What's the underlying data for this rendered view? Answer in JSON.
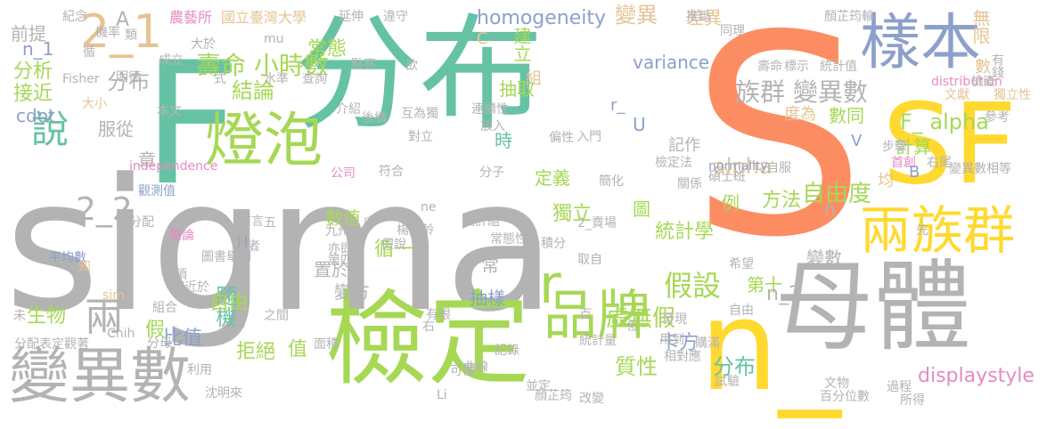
{
  "palette": {
    "background": "#ffffff",
    "green": "#a6d854",
    "teal": "#66c2a5",
    "orange": "#fc8d62",
    "blue": "#8da0cb",
    "pink": "#e78ac3",
    "yellow": "#ffd92f",
    "tan": "#e5c494",
    "gray": "#b3b3b3"
  },
  "words": [
    {
      "text": "sigma",
      "color": "gray"
    },
    {
      "text": "S",
      "color": "orange"
    },
    {
      "text": "分布",
      "color": "teal"
    },
    {
      "text": "F",
      "color": "teal"
    },
    {
      "text": "母體",
      "color": "gray"
    },
    {
      "text": "檢定",
      "color": "green"
    },
    {
      "text": "n_",
      "color": "yellow"
    },
    {
      "text": "樣本",
      "color": "blue"
    },
    {
      "text": "變異數",
      "color": "gray"
    },
    {
      "text": "SF",
      "color": "yellow"
    },
    {
      "text": "燈泡",
      "color": "green"
    },
    {
      "text": "兩族群",
      "color": "yellow"
    },
    {
      "text": "品牌",
      "color": "green"
    },
    {
      "text": "2_1",
      "color": "tan"
    },
    {
      "text": "說",
      "color": "teal"
    },
    {
      "text": "兩",
      "color": "gray"
    },
    {
      "text": "族群 變異數",
      "color": "gray"
    },
    {
      "text": "自由度",
      "color": "green"
    },
    {
      "text": "F_ alpha",
      "color": "green"
    },
    {
      "text": "假設",
      "color": "green"
    },
    {
      "text": "r",
      "color": "green"
    },
    {
      "text": "壽命 小時數",
      "color": "green"
    },
    {
      "text": "分布",
      "color": "gray"
    },
    {
      "text": "變異",
      "color": "tan"
    },
    {
      "text": "常態",
      "color": "green"
    },
    {
      "text": "結論",
      "color": "green"
    },
    {
      "text": "alpha",
      "color": "tan"
    },
    {
      "text": "隨機",
      "color": "teal"
    },
    {
      "text": "虛無假",
      "color": "green"
    },
    {
      "text": "卡方",
      "color": "blue"
    },
    {
      "text": "質性",
      "color": "green"
    },
    {
      "text": "分布",
      "color": "teal"
    },
    {
      "text": "n_2",
      "color": "gray"
    },
    {
      "text": "displaystyle",
      "color": "pink"
    },
    {
      "text": "2_2",
      "color": "gray"
    },
    {
      "text": "homogeneity",
      "color": "blue"
    },
    {
      "text": "variance",
      "color": "blue"
    },
    {
      "text": "cdot",
      "color": "blue"
    },
    {
      "text": "分析",
      "color": "green"
    },
    {
      "text": "接近",
      "color": "green"
    },
    {
      "text": "生物",
      "color": "green"
    },
    {
      "text": "自由",
      "color": "green"
    },
    {
      "text": "比值",
      "color": "blue"
    },
    {
      "text": "拒絕",
      "color": "green"
    },
    {
      "text": "值",
      "color": "green"
    },
    {
      "text": "統計學",
      "color": "green"
    },
    {
      "text": "變數",
      "color": "gray"
    },
    {
      "text": "方法",
      "color": "green"
    },
    {
      "text": "計算",
      "color": "green"
    },
    {
      "text": "數同",
      "color": "green"
    },
    {
      "text": "度為",
      "color": "tan"
    },
    {
      "text": "抽取",
      "color": "green"
    },
    {
      "text": "建立",
      "color": "green"
    },
    {
      "text": "服從",
      "color": "gray"
    },
    {
      "text": "前提",
      "color": "gray"
    },
    {
      "text": "n_1",
      "color": "blue"
    },
    {
      "text": "獨立",
      "color": "green"
    },
    {
      "text": "定義",
      "color": "green"
    },
    {
      "text": "時",
      "color": "teal"
    },
    {
      "text": "數值",
      "color": "green"
    },
    {
      "text": "循一",
      "color": "green"
    },
    {
      "text": "置於",
      "color": "gray"
    },
    {
      "text": "變方",
      "color": "gray"
    },
    {
      "text": "抽樣",
      "color": "blue"
    },
    {
      "text": "無限",
      "color": "tan"
    },
    {
      "text": "差異",
      "color": "tan"
    },
    {
      "text": "記作",
      "color": "gray"
    },
    {
      "text": "圖",
      "color": "green"
    },
    {
      "text": "第十",
      "color": "green"
    },
    {
      "text": "例",
      "color": "green"
    },
    {
      "text": "章",
      "color": "gray"
    },
    {
      "text": "均",
      "color": "tan"
    },
    {
      "text": "U",
      "color": "blue"
    },
    {
      "text": "r_",
      "color": "blue"
    },
    {
      "text": "V",
      "color": "blue"
    },
    {
      "text": "H",
      "color": "blue"
    },
    {
      "text": "B",
      "color": "blue"
    },
    {
      "text": "C",
      "color": "tan"
    },
    {
      "text": "A",
      "color": "gray"
    },
    {
      "text": "n",
      "color": "gray"
    },
    {
      "text": "常",
      "color": "gray"
    },
    {
      "text": "假",
      "color": "green"
    },
    {
      "text": "組",
      "color": "tan"
    },
    {
      "text": "數",
      "color": "tan"
    },
    {
      "text": "延伸",
      "color": "gray"
    },
    {
      "text": "違守",
      "color": "gray"
    },
    {
      "text": "推斷",
      "color": "gray"
    },
    {
      "text": "顏芷筠輸",
      "color": "gray"
    },
    {
      "text": "農藝所",
      "color": "pink"
    },
    {
      "text": "國立臺灣大學",
      "color": "tan"
    },
    {
      "text": "同理",
      "color": "gray"
    },
    {
      "text": "有錢",
      "color": "gray"
    },
    {
      "text": "壽命",
      "color": "gray"
    },
    {
      "text": "標示",
      "color": "gray"
    },
    {
      "text": "統計值",
      "color": "gray"
    },
    {
      "text": "distribution",
      "color": "pink"
    },
    {
      "text": "檢查",
      "color": "gray"
    },
    {
      "text": "獨立性",
      "color": "tan"
    },
    {
      "text": "文獻",
      "color": "tan"
    },
    {
      "text": "參考",
      "color": "gray"
    },
    {
      "text": "步驟",
      "color": "gray"
    },
    {
      "text": "首創",
      "color": "pink"
    },
    {
      "text": "右尾",
      "color": "gray"
    },
    {
      "text": "變異數相等",
      "color": "gray"
    },
    {
      "text": "independence",
      "color": "pink"
    },
    {
      "text": "normality",
      "color": "blue"
    },
    {
      "text": "檢定法",
      "color": "gray"
    },
    {
      "text": "自服",
      "color": "gray"
    },
    {
      "text": "碩士班",
      "color": "gray"
    },
    {
      "text": "關係",
      "color": "gray"
    },
    {
      "text": "公司",
      "color": "pink"
    },
    {
      "text": "觀測值",
      "color": "blue"
    },
    {
      "text": "推論",
      "color": "pink"
    },
    {
      "text": "符合",
      "color": "gray"
    },
    {
      "text": "分子",
      "color": "gray"
    },
    {
      "text": "簡化",
      "color": "gray"
    },
    {
      "text": "統計組",
      "color": "gray"
    },
    {
      "text": "楊應齡",
      "color": "gray"
    },
    {
      "text": "2_賣場",
      "color": "gray"
    },
    {
      "text": "常態性",
      "color": "gray"
    },
    {
      "text": "假說",
      "color": "gray"
    },
    {
      "text": "積分",
      "color": "gray"
    },
    {
      "text": "取自",
      "color": "gray"
    },
    {
      "text": "先",
      "color": "gray"
    },
    {
      "text": "希望",
      "color": "gray"
    },
    {
      "text": "前言",
      "color": "gray"
    },
    {
      "text": "五",
      "color": "gray"
    },
    {
      "text": "作者",
      "color": "gray"
    },
    {
      "text": "九州",
      "color": "gray"
    },
    {
      "text": "亦即",
      "color": "gray"
    },
    {
      "text": "第四",
      "color": "gray"
    },
    {
      "text": "圖書",
      "color": "gray"
    },
    {
      "text": "舉例",
      "color": "gray"
    },
    {
      "text": "平均數",
      "color": "blue"
    },
    {
      "text": "知",
      "color": "tan"
    },
    {
      "text": "項",
      "color": "gray"
    },
    {
      "text": "趨近於",
      "color": "gray"
    },
    {
      "text": "組合",
      "color": "gray"
    },
    {
      "text": "分母",
      "color": "gray"
    },
    {
      "text": "分配表定觀著",
      "color": "gray"
    },
    {
      "text": "利用",
      "color": "gray"
    },
    {
      "text": "沈明來",
      "color": "gray"
    },
    {
      "text": "面積",
      "color": "gray"
    },
    {
      "text": "可僅",
      "color": "gray"
    },
    {
      "text": "記錄",
      "color": "gray"
    },
    {
      "text": "曲線",
      "color": "gray"
    },
    {
      "text": "並定",
      "color": "gray"
    },
    {
      "text": "顏芷筠",
      "color": "gray"
    },
    {
      "text": "改變",
      "color": "gray"
    },
    {
      "text": "統計量",
      "color": "gray"
    },
    {
      "text": "用到",
      "color": "gray"
    },
    {
      "text": "相對應",
      "color": "gray"
    },
    {
      "text": "購滿",
      "color": "gray"
    },
    {
      "text": "試驗",
      "color": "gray"
    },
    {
      "text": "文物",
      "color": "gray"
    },
    {
      "text": "百分位數",
      "color": "gray"
    },
    {
      "text": "過程",
      "color": "gray"
    },
    {
      "text": "所得",
      "color": "gray"
    },
    {
      "text": "發現",
      "color": "gray"
    },
    {
      "text": "百",
      "color": "gray"
    },
    {
      "text": "位",
      "color": "gray"
    },
    {
      "text": "自由",
      "color": "gray"
    },
    {
      "text": "有限",
      "color": "gray"
    },
    {
      "text": "右",
      "color": "gray"
    },
    {
      "text": "之間",
      "color": "gray"
    },
    {
      "text": "需",
      "color": "gray"
    },
    {
      "text": "Li",
      "color": "gray"
    },
    {
      "text": "Chih",
      "color": "gray"
    },
    {
      "text": "sim",
      "color": "tan"
    },
    {
      "text": "未",
      "color": "gray"
    },
    {
      "text": "明德",
      "color": "gray"
    },
    {
      "text": "Fisher",
      "color": "gray"
    },
    {
      "text": "大小",
      "color": "tan"
    },
    {
      "text": "本文",
      "color": "gray"
    },
    {
      "text": "水準",
      "color": "gray"
    },
    {
      "text": "查詢",
      "color": "gray"
    },
    {
      "text": "點亮",
      "color": "gray"
    },
    {
      "text": "介紹",
      "color": "gray"
    },
    {
      "text": "後續",
      "color": "gray"
    },
    {
      "text": "互為獨",
      "color": "gray"
    },
    {
      "text": "對立",
      "color": "gray"
    },
    {
      "text": "連續性",
      "color": "gray"
    },
    {
      "text": "放入",
      "color": "gray"
    },
    {
      "text": "偏性",
      "color": "gray"
    },
    {
      "text": "入門",
      "color": "gray"
    },
    {
      "text": "紀念",
      "color": "gray"
    },
    {
      "text": "類",
      "color": "gray"
    },
    {
      "text": "機率",
      "color": "gray"
    },
    {
      "text": "成立",
      "color": "gray"
    },
    {
      "text": "循",
      "color": "gray"
    },
    {
      "text": "大於",
      "color": "gray"
    },
    {
      "text": "mu",
      "color": "gray"
    },
    {
      "text": "式",
      "color": "gray"
    },
    {
      "text": "欲",
      "color": "gray"
    },
    {
      "text": "ne",
      "color": "gray"
    },
    {
      "text": "中",
      "color": "gray"
    },
    {
      "text": "分配",
      "color": "gray"
    }
  ]
}
